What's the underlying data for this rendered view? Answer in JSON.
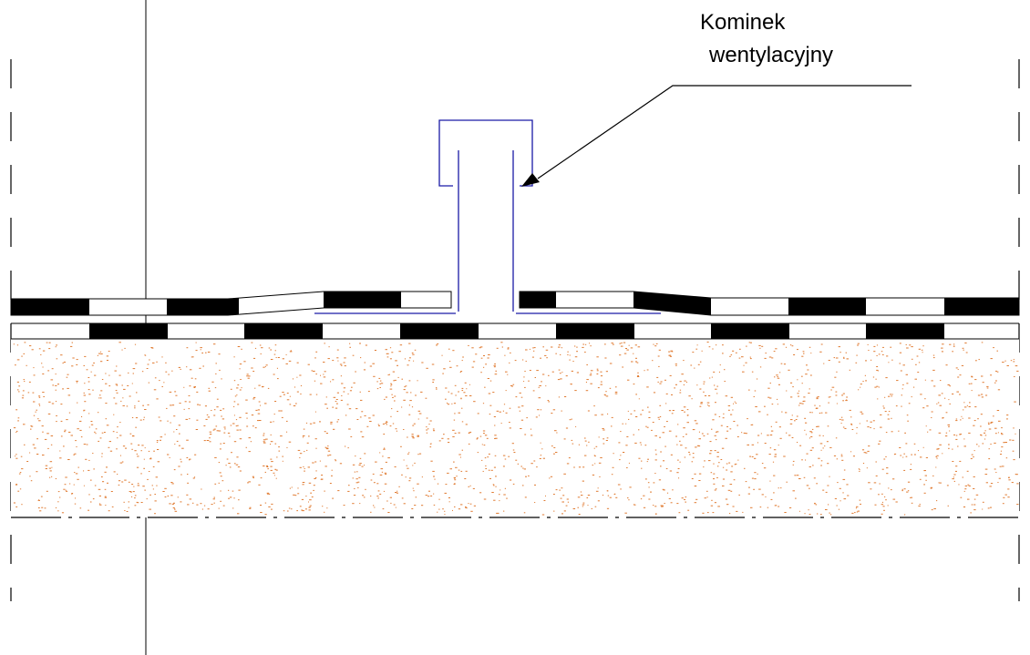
{
  "annotation": {
    "line1": "Kominek",
    "line2": "wentylacyjny"
  },
  "colors": {
    "line": "#000000",
    "vent": "#1a1aa6",
    "insulation_dots": "#e07a30",
    "background": "#ffffff"
  }
}
